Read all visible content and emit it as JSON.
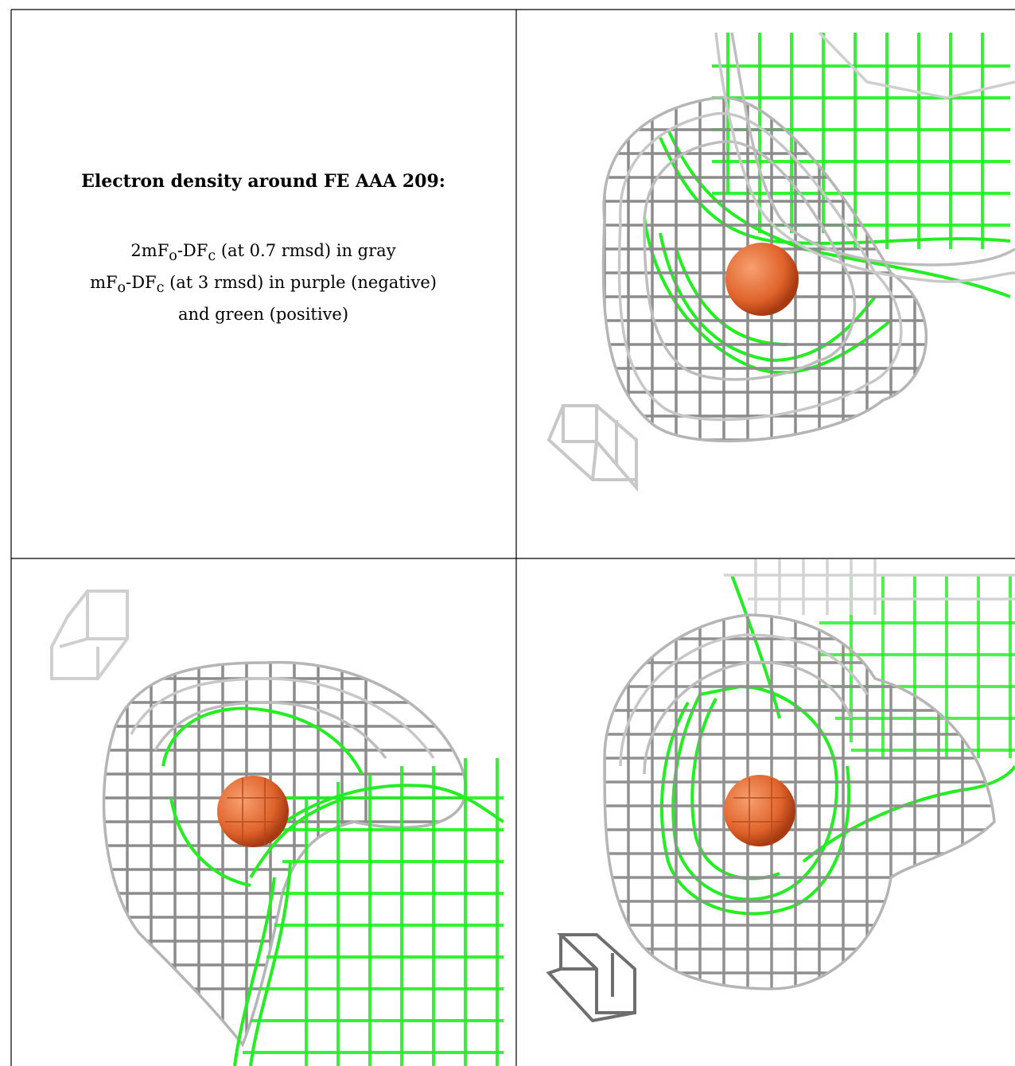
{
  "caption": {
    "title": "Electron density around FE AAA 209:",
    "lines": [
      {
        "main": "2mF",
        "sub1": "o",
        "mid": "-DF",
        "sub2": "c",
        "rest": " (at 0.7 rmsd) in gray"
      },
      {
        "main": "mF",
        "sub1": "o",
        "mid": "-DF",
        "sub2": "c",
        "rest": " (at 3 rmsd) in purple (negative)"
      },
      {
        "text": "and green (positive)"
      }
    ]
  },
  "colors": {
    "map_2fofc": "#9a9a9a",
    "map_fofc_positive": "#22ee22",
    "atom_fe": "#e0632b",
    "border": "#000000"
  },
  "panels": [
    {
      "name": "view-2",
      "atom": "FE"
    },
    {
      "name": "view-3",
      "atom": "FE"
    },
    {
      "name": "view-4",
      "atom": "FE"
    }
  ]
}
